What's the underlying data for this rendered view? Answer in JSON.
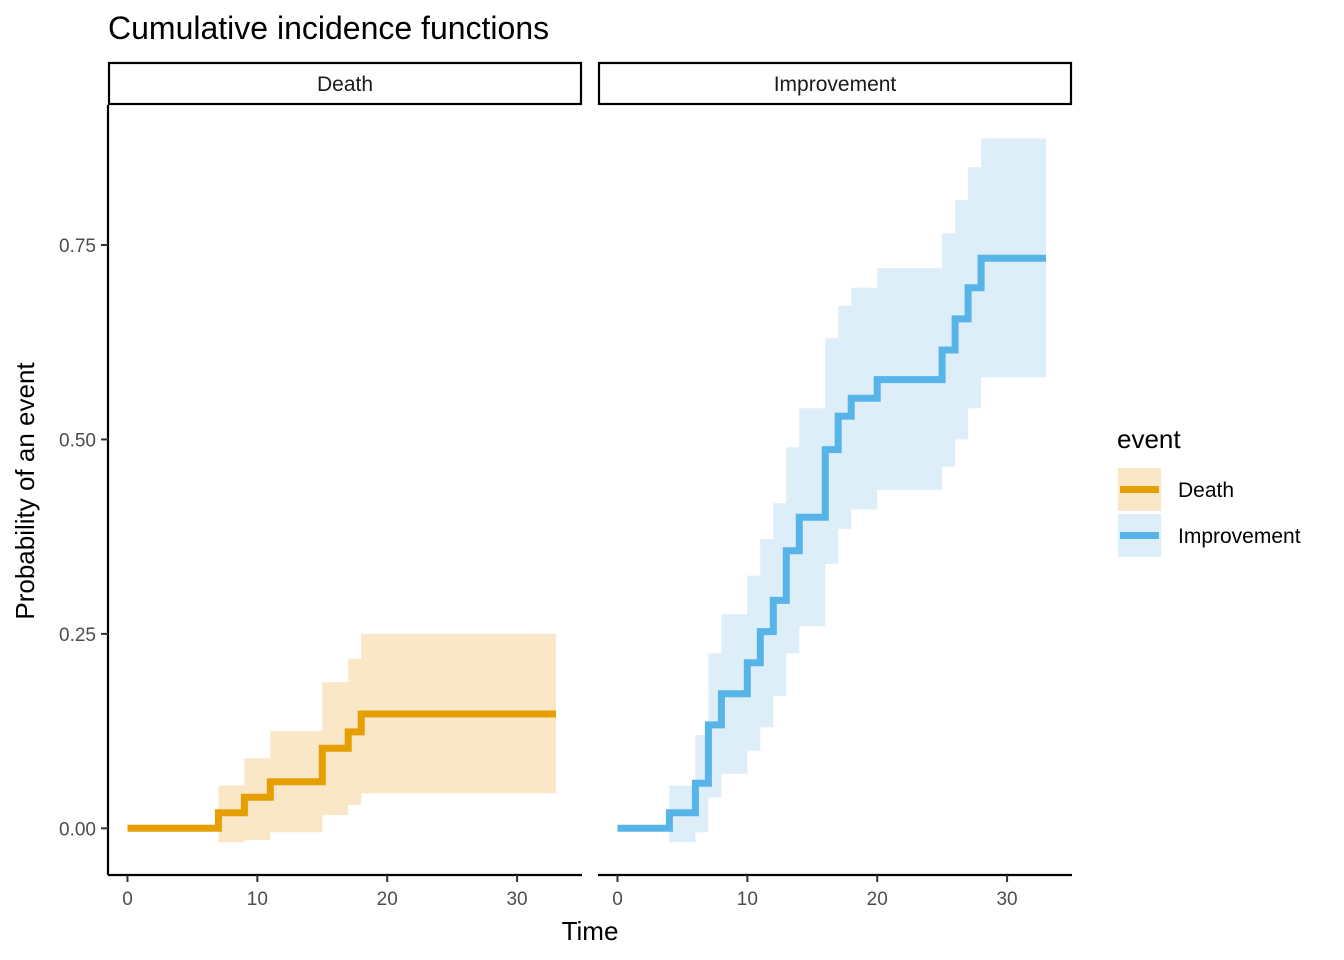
{
  "chart_data": {
    "type": "line",
    "subtype": "step-with-confidence-band",
    "title": "Cumulative incidence functions",
    "xlabel": "Time",
    "ylabel": "Probability of an event",
    "xlim": [
      -1.5,
      35
    ],
    "ylim": [
      -0.06,
      0.93
    ],
    "x_ticks": [
      0,
      10,
      20,
      30
    ],
    "y_ticks": [
      0.0,
      0.25,
      0.5,
      0.75
    ],
    "y_tick_labels": [
      "0.00",
      "0.25",
      "0.50",
      "0.75"
    ],
    "grid": false,
    "legend": {
      "title": "event",
      "position": "right",
      "entries": [
        "Death",
        "Improvement"
      ]
    },
    "panels": [
      {
        "strip": "Death",
        "series": "Death",
        "color": "#E69F00",
        "band_color": "#F9E7C8",
        "steps": [
          {
            "x": 0,
            "y": 0.0,
            "lo": 0.0,
            "hi": 0.0
          },
          {
            "x": 7,
            "y": 0.02,
            "lo": -0.018,
            "hi": 0.055
          },
          {
            "x": 9,
            "y": 0.04,
            "lo": -0.015,
            "hi": 0.09
          },
          {
            "x": 11,
            "y": 0.06,
            "lo": -0.005,
            "hi": 0.125
          },
          {
            "x": 15,
            "y": 0.103,
            "lo": 0.017,
            "hi": 0.188
          },
          {
            "x": 17,
            "y": 0.124,
            "lo": 0.03,
            "hi": 0.218
          },
          {
            "x": 18,
            "y": 0.147,
            "lo": 0.045,
            "hi": 0.25
          }
        ],
        "end_x": 33
      },
      {
        "strip": "Improvement",
        "series": "Improvement",
        "color": "#56B4E9",
        "band_color": "#DDEEF9",
        "steps": [
          {
            "x": 0,
            "y": 0.0,
            "lo": 0.0,
            "hi": 0.0
          },
          {
            "x": 4,
            "y": 0.02,
            "lo": -0.018,
            "hi": 0.055
          },
          {
            "x": 6,
            "y": 0.058,
            "lo": -0.005,
            "hi": 0.12
          },
          {
            "x": 7,
            "y": 0.133,
            "lo": 0.04,
            "hi": 0.225
          },
          {
            "x": 8,
            "y": 0.173,
            "lo": 0.07,
            "hi": 0.275
          },
          {
            "x": 10,
            "y": 0.213,
            "lo": 0.1,
            "hi": 0.325
          },
          {
            "x": 11,
            "y": 0.253,
            "lo": 0.13,
            "hi": 0.372
          },
          {
            "x": 12,
            "y": 0.293,
            "lo": 0.17,
            "hi": 0.418
          },
          {
            "x": 13,
            "y": 0.357,
            "lo": 0.225,
            "hi": 0.49
          },
          {
            "x": 14,
            "y": 0.4,
            "lo": 0.26,
            "hi": 0.54
          },
          {
            "x": 16,
            "y": 0.487,
            "lo": 0.34,
            "hi": 0.63
          },
          {
            "x": 17,
            "y": 0.53,
            "lo": 0.385,
            "hi": 0.672
          },
          {
            "x": 18,
            "y": 0.553,
            "lo": 0.41,
            "hi": 0.695
          },
          {
            "x": 20,
            "y": 0.577,
            "lo": 0.435,
            "hi": 0.72
          },
          {
            "x": 25,
            "y": 0.615,
            "lo": 0.465,
            "hi": 0.765
          },
          {
            "x": 26,
            "y": 0.655,
            "lo": 0.5,
            "hi": 0.808
          },
          {
            "x": 27,
            "y": 0.695,
            "lo": 0.54,
            "hi": 0.85
          },
          {
            "x": 28,
            "y": 0.733,
            "lo": 0.58,
            "hi": 0.887
          }
        ],
        "end_x": 33
      }
    ]
  }
}
